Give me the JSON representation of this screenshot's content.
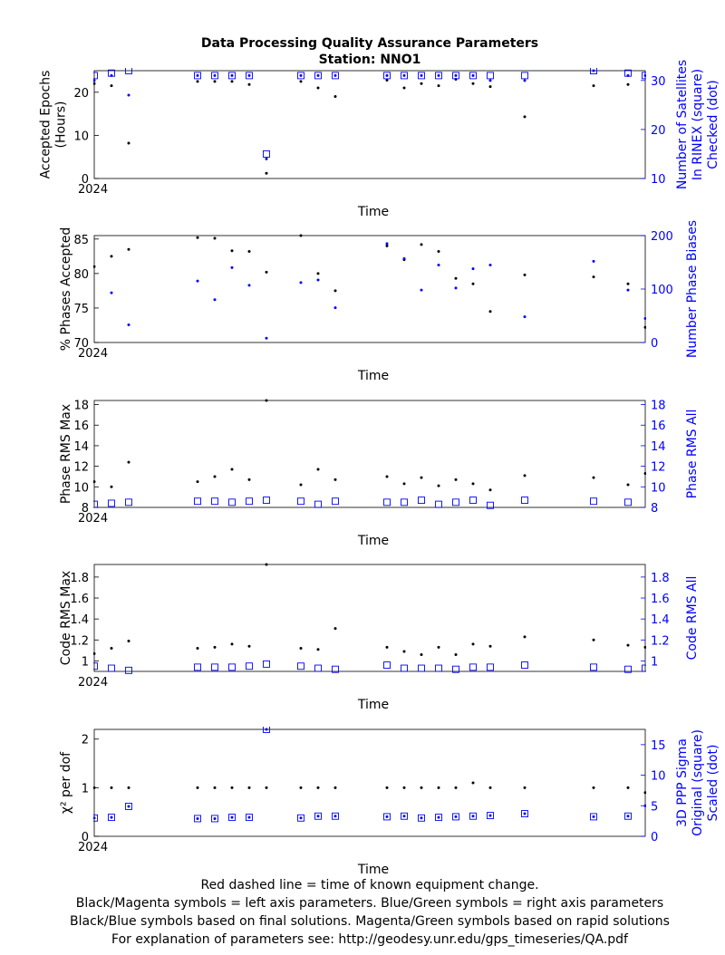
{
  "title": "Data Processing Quality Assurance Parameters",
  "subtitle": "Station: NNO1",
  "footer": [
    "Red dashed line = time of known equipment change.",
    "Black/Magenta symbols = left axis parameters. Blue/Green symbols = right axis parameters",
    "Black/Blue symbols based on final solutions.  Magenta/Green symbols based on rapid solutions",
    "For explanation of parameters see: http://geodesy.unr.edu/gps_timeseries/QA.pdf"
  ],
  "colors": {
    "left": "#000000",
    "right": "#0000ff"
  },
  "chart_data": [
    {
      "type": "scatter",
      "xlabel": "Time",
      "x_tick_label": "2024",
      "ylabel_left": [
        "Accepted Epochs",
        "(Hours)"
      ],
      "ylabel_right": [
        "Number of Satellites",
        "In RINEX (square)",
        "Checked (dot)"
      ],
      "ylim_left": [
        0,
        25
      ],
      "ylim_right": [
        10,
        32
      ],
      "yticks_left": [
        0,
        10,
        20
      ],
      "yticks_right": [
        10,
        20,
        30
      ],
      "x": [
        0,
        1,
        2,
        6,
        7,
        8,
        9,
        10,
        12,
        13,
        14,
        17,
        18,
        19,
        20,
        21,
        22,
        23,
        25,
        29,
        31,
        32
      ],
      "series": [
        {
          "axis": "left",
          "marker": "dot",
          "values": [
            22,
            21.5,
            8.2,
            22.5,
            22.5,
            22.5,
            21.8,
            1.2,
            22.5,
            21,
            19,
            22.8,
            21,
            22,
            21.5,
            23,
            22,
            21.3,
            14.3,
            21.5,
            21.8,
            null
          ]
        },
        {
          "axis": "right",
          "marker": "square",
          "values": [
            31,
            31.5,
            32,
            31,
            31,
            31,
            31,
            15,
            31,
            31,
            31,
            31,
            31,
            31,
            31,
            31,
            31,
            31,
            31,
            32,
            31.5,
            31
          ]
        },
        {
          "axis": "right",
          "marker": "dot",
          "values": [
            30,
            31,
            27,
            31,
            31,
            31,
            31,
            14,
            31,
            31,
            31,
            31,
            31,
            31,
            31,
            31,
            31,
            30,
            30,
            32,
            31,
            31
          ]
        }
      ]
    },
    {
      "type": "scatter",
      "xlabel": "Time",
      "x_tick_label": "2024",
      "ylabel_left": [
        "% Phases Accepted"
      ],
      "ylabel_right": [
        "Number Phase Biases"
      ],
      "ylim_left": [
        70,
        85.5
      ],
      "ylim_right": [
        0,
        200
      ],
      "yticks_left": [
        70,
        75,
        80,
        85
      ],
      "yticks_right": [
        0,
        100,
        200
      ],
      "x": [
        0,
        1,
        2,
        6,
        7,
        8,
        9,
        10,
        12,
        13,
        14,
        17,
        18,
        19,
        20,
        21,
        22,
        23,
        25,
        29,
        31,
        32
      ],
      "series": [
        {
          "axis": "left",
          "marker": "dot",
          "values": [
            81,
            82.5,
            83.5,
            85.2,
            85.1,
            83.3,
            83.2,
            80.2,
            85.5,
            80,
            77.5,
            84,
            82,
            84.2,
            83.2,
            79.3,
            78.5,
            74.5,
            79.8,
            79.5,
            78.5,
            72.2
          ]
        },
        {
          "axis": "right",
          "marker": "dot",
          "values": [
            null,
            93,
            33,
            115,
            80,
            140,
            107,
            8,
            112,
            117,
            65,
            185,
            157,
            98,
            145,
            102,
            138,
            145,
            48,
            152,
            98,
            45
          ]
        }
      ]
    },
    {
      "type": "scatter",
      "xlabel": "Time",
      "x_tick_label": "2024",
      "ylabel_left": [
        "Phase RMS Max"
      ],
      "ylabel_right": [
        "Phase RMS All"
      ],
      "ylim_left": [
        8,
        18.4
      ],
      "ylim_right": [
        8,
        18.4
      ],
      "yticks_left": [
        8,
        10,
        12,
        14,
        16,
        18
      ],
      "yticks_right": [
        8,
        10,
        12,
        14,
        16,
        18
      ],
      "x": [
        0,
        1,
        2,
        6,
        7,
        8,
        9,
        10,
        12,
        13,
        14,
        17,
        18,
        19,
        20,
        21,
        22,
        23,
        25,
        29,
        31,
        32
      ],
      "series": [
        {
          "axis": "left",
          "marker": "dot",
          "values": [
            10.5,
            10,
            12.4,
            10.5,
            11,
            11.7,
            10.7,
            18.4,
            10.2,
            11.7,
            10.7,
            11,
            10.3,
            10.9,
            10.1,
            10.7,
            10.3,
            9.7,
            11.1,
            10.9,
            10.2,
            11.3
          ]
        },
        {
          "axis": "right",
          "marker": "square",
          "values": [
            8.3,
            8.4,
            8.5,
            8.6,
            8.6,
            8.5,
            8.6,
            8.7,
            8.6,
            8.3,
            8.6,
            8.5,
            8.5,
            8.7,
            8.3,
            8.5,
            8.7,
            8.2,
            8.7,
            8.6,
            8.5,
            null
          ]
        }
      ]
    },
    {
      "type": "scatter",
      "xlabel": "Time",
      "x_tick_label": "2024",
      "ylabel_left": [
        "Code RMS Max"
      ],
      "ylabel_right": [
        "Code RMS All"
      ],
      "ylim_left": [
        0.9,
        1.92
      ],
      "ylim_right": [
        0.9,
        1.92
      ],
      "yticks_left": [
        1,
        1.2,
        1.4,
        1.6,
        1.8
      ],
      "yticks_right": [
        1,
        1.2,
        1.4,
        1.6,
        1.8
      ],
      "x": [
        0,
        1,
        2,
        6,
        7,
        8,
        9,
        10,
        12,
        13,
        14,
        17,
        18,
        19,
        20,
        21,
        22,
        23,
        25,
        29,
        31,
        32
      ],
      "series": [
        {
          "axis": "left",
          "marker": "dot",
          "values": [
            1.07,
            1.12,
            1.19,
            1.12,
            1.13,
            1.16,
            1.14,
            1.92,
            1.12,
            1.11,
            1.31,
            1.13,
            1.09,
            1.06,
            1.13,
            1.06,
            1.16,
            1.14,
            1.23,
            1.2,
            1.15,
            1.13
          ]
        },
        {
          "axis": "right",
          "marker": "square",
          "values": [
            0.95,
            0.93,
            0.91,
            0.94,
            0.94,
            0.94,
            0.95,
            0.97,
            0.95,
            0.93,
            0.92,
            0.96,
            0.93,
            0.93,
            0.93,
            0.92,
            0.94,
            0.94,
            0.96,
            0.94,
            0.92,
            0.93
          ]
        }
      ]
    },
    {
      "type": "scatter",
      "xlabel": "Time",
      "x_tick_label": "2024",
      "ylabel_left": [
        "χ² per dof"
      ],
      "ylabel_right": [
        "3D PPP Sigma",
        "Original (square)",
        "Scaled (dot)"
      ],
      "ylim_left": [
        0,
        2.2
      ],
      "ylim_right": [
        0,
        17.5
      ],
      "yticks_left": [
        0,
        1,
        2
      ],
      "yticks_right": [
        0,
        5,
        10,
        15
      ],
      "x": [
        0,
        1,
        2,
        6,
        7,
        8,
        9,
        10,
        12,
        13,
        14,
        17,
        18,
        19,
        20,
        21,
        22,
        23,
        25,
        29,
        31,
        32
      ],
      "series": [
        {
          "axis": "left",
          "marker": "dot",
          "values": [
            1,
            1,
            1,
            1,
            1,
            1,
            1,
            1,
            1,
            1,
            1,
            1,
            1,
            1,
            1,
            1,
            1.1,
            1,
            1,
            1,
            1,
            0.9
          ]
        },
        {
          "axis": "right",
          "marker": "square",
          "values": [
            3,
            3.1,
            4.9,
            2.9,
            2.9,
            3.1,
            3.1,
            17.5,
            3,
            3.3,
            3.3,
            3.2,
            3.3,
            3,
            3.1,
            3.2,
            3.3,
            3.4,
            3.7,
            3.2,
            3.3,
            null
          ]
        },
        {
          "axis": "right",
          "marker": "dot",
          "values": [
            3,
            3.1,
            4.9,
            2.9,
            2.9,
            3.1,
            3.1,
            17.5,
            3,
            3.3,
            3.3,
            3.2,
            3.3,
            3,
            3.1,
            3.2,
            3.3,
            3.4,
            3.7,
            3.2,
            3.3,
            5
          ]
        }
      ]
    }
  ]
}
